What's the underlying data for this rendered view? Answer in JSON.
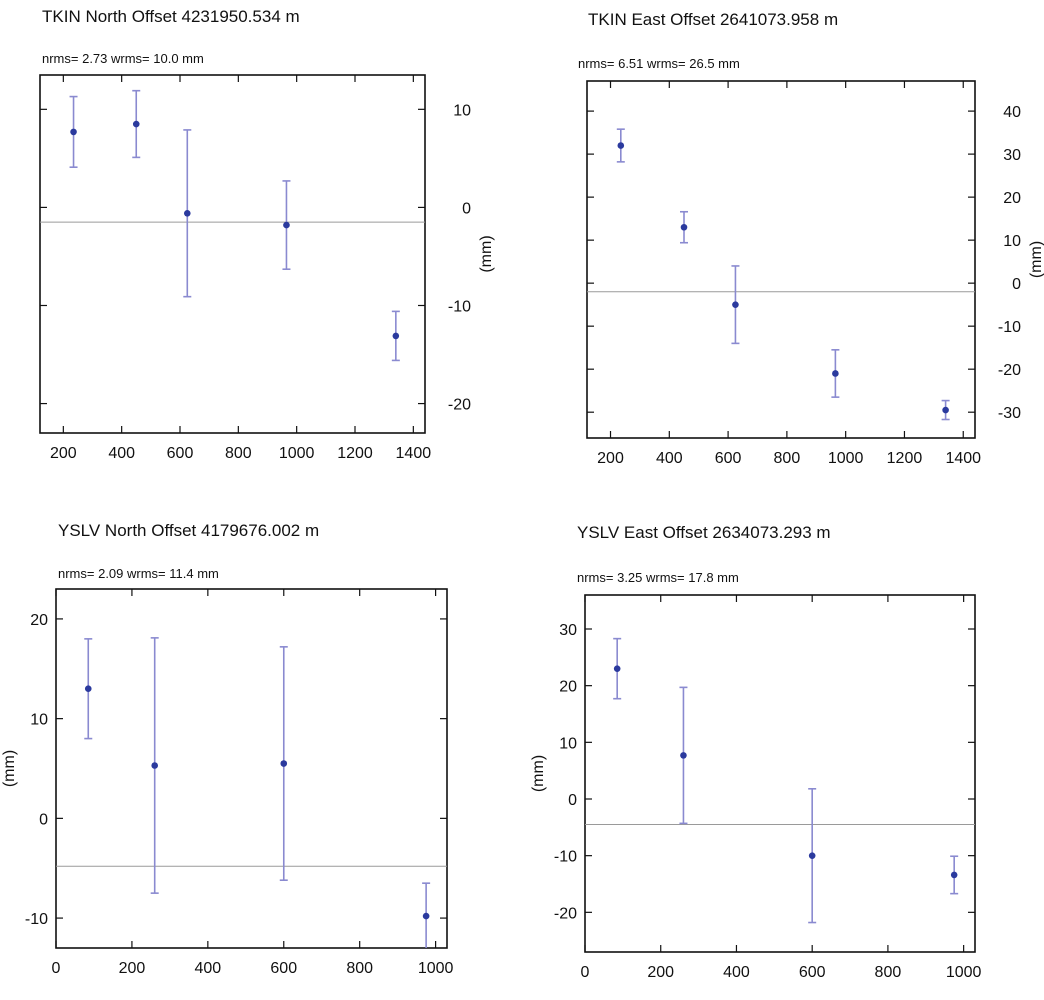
{
  "chart_data": [
    {
      "type": "scatter",
      "title": "TKIN  North Offset   4231950.534 m",
      "subtitle": "nrms=  2.73  wrms=  10.0 mm",
      "xlabel": "",
      "ylabel": "(mm)",
      "ylabel_side": "right",
      "xlim": [
        120,
        1440
      ],
      "ylim": [
        -23,
        13.5
      ],
      "x_ticks": [
        200,
        400,
        600,
        800,
        1000,
        1200,
        1400
      ],
      "y_ticks": [
        -20,
        -10,
        0,
        10
      ],
      "reference_line": -1.5,
      "grid": false,
      "marker_color": "#2b3a9e",
      "errorbar_color": "#8a8ad0",
      "series": [
        {
          "x": [
            235,
            450,
            625,
            965,
            1340
          ],
          "y": [
            7.7,
            8.5,
            -0.6,
            -1.8,
            -13.1
          ],
          "yerr": [
            3.6,
            3.4,
            8.5,
            4.5,
            2.5
          ]
        }
      ]
    },
    {
      "type": "scatter",
      "title": "TKIN  East Offset   2641073.958 m",
      "subtitle": "nrms=  6.51  wrms=  26.5 mm",
      "xlabel": "",
      "ylabel": "(mm)",
      "ylabel_side": "right",
      "xlim": [
        120,
        1440
      ],
      "ylim": [
        -36,
        47
      ],
      "x_ticks": [
        200,
        400,
        600,
        800,
        1000,
        1200,
        1400
      ],
      "y_ticks": [
        -30,
        -20,
        -10,
        0,
        10,
        20,
        30,
        40
      ],
      "reference_line": -2,
      "grid": false,
      "marker_color": "#2b3a9e",
      "errorbar_color": "#8a8ad0",
      "series": [
        {
          "x": [
            235,
            450,
            625,
            965,
            1340
          ],
          "y": [
            32,
            13,
            -5,
            -21,
            -29.5
          ],
          "yerr": [
            3.8,
            3.6,
            9,
            5.5,
            2.2
          ]
        }
      ]
    },
    {
      "type": "scatter",
      "title": "YSLV  North Offset   4179676.002 m",
      "subtitle": "nrms=  2.09  wrms=  11.4 mm",
      "xlabel": "",
      "ylabel": "(mm)",
      "ylabel_side": "left",
      "xlim": [
        0,
        1030
      ],
      "ylim": [
        -13,
        23
      ],
      "x_ticks": [
        0,
        200,
        400,
        600,
        800,
        1000
      ],
      "y_ticks": [
        -10,
        0,
        10,
        20
      ],
      "reference_line": -4.8,
      "grid": false,
      "marker_color": "#2b3a9e",
      "errorbar_color": "#8a8ad0",
      "series": [
        {
          "x": [
            85,
            260,
            600,
            975
          ],
          "y": [
            13,
            5.3,
            5.5,
            -9.8
          ],
          "yerr": [
            5,
            12.8,
            11.7,
            3.3
          ]
        }
      ]
    },
    {
      "type": "scatter",
      "title": "YSLV  East Offset   2634073.293 m",
      "subtitle": "nrms=  3.25  wrms=  17.8 mm",
      "xlabel": "",
      "ylabel": "(mm)",
      "ylabel_side": "left",
      "xlim": [
        0,
        1030
      ],
      "ylim": [
        -27,
        36
      ],
      "x_ticks": [
        0,
        200,
        400,
        600,
        800,
        1000
      ],
      "y_ticks": [
        -20,
        -10,
        0,
        10,
        20,
        30
      ],
      "reference_line": -4.5,
      "grid": false,
      "marker_color": "#2b3a9e",
      "errorbar_color": "#8a8ad0",
      "series": [
        {
          "x": [
            85,
            260,
            600,
            975
          ],
          "y": [
            23,
            7.7,
            -10,
            -13.4
          ],
          "yerr": [
            5.3,
            12,
            11.8,
            3.3
          ]
        }
      ]
    }
  ]
}
